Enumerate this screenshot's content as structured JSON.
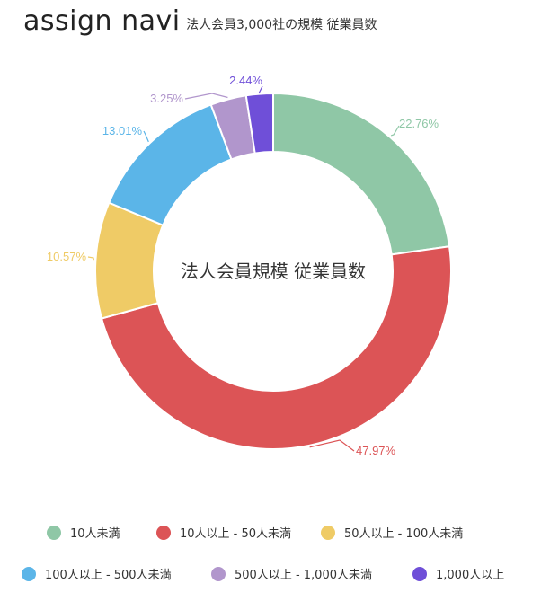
{
  "header": {
    "logo": "assign navi",
    "subtitle": "法人会員3,000社の規模 従業員数"
  },
  "chart_data": {
    "type": "pie",
    "title": "法人会員規模 従業員数",
    "donut": true,
    "start": "top",
    "direction": "clockwise",
    "legend_position": "bottom",
    "categories": [
      "10人未満",
      "10人以上 - 50人未満",
      "50人以上 - 100人未満",
      "100人以上 - 500人未満",
      "500人以上 - 1,000人未満",
      "1,000人以上"
    ],
    "values": [
      22.76,
      47.97,
      10.57,
      13.01,
      3.25,
      2.44
    ],
    "value_labels": [
      "22.76%",
      "47.97%",
      "10.57%",
      "13.01%",
      "3.25%",
      "2.44%"
    ],
    "colors": [
      "#8fc7a6",
      "#dc5456",
      "#efcb66",
      "#5bb5e8",
      "#b196cc",
      "#6f4fd8"
    ]
  }
}
